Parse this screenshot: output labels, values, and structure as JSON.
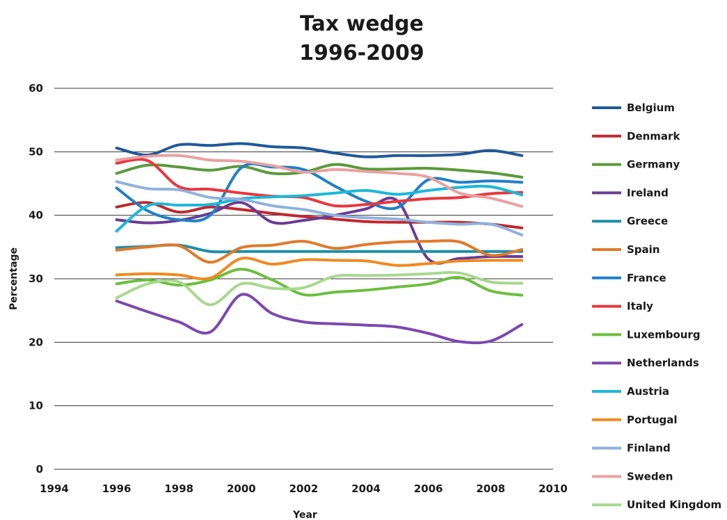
{
  "chart_data": {
    "type": "line",
    "title_lines": [
      "Tax wedge",
      "1996-2009"
    ],
    "xlabel": "Year",
    "ylabel": "Percentage",
    "xlim": [
      1994,
      2010
    ],
    "ylim": [
      0,
      60
    ],
    "x_ticks": [
      1994,
      1996,
      1998,
      2000,
      2002,
      2004,
      2006,
      2008,
      2010
    ],
    "y_ticks": [
      0,
      10,
      20,
      30,
      40,
      50,
      60
    ],
    "grid": "horizontal",
    "legend_position": "right",
    "x": [
      1996,
      1997,
      1998,
      1999,
      2000,
      2001,
      2002,
      2003,
      2004,
      2005,
      2006,
      2007,
      2008,
      2009
    ],
    "series": [
      {
        "name": "Belgium",
        "color": "#1f5a99",
        "values": [
          50.6,
          49.5,
          51.1,
          51.0,
          51.3,
          50.8,
          50.6,
          49.8,
          49.2,
          49.4,
          49.4,
          49.6,
          50.2,
          49.4
        ]
      },
      {
        "name": "Denmark",
        "color": "#c0282d",
        "values": [
          41.3,
          42.0,
          40.5,
          41.3,
          40.9,
          40.3,
          39.8,
          39.4,
          39.0,
          38.9,
          38.9,
          38.9,
          38.6,
          38.0
        ]
      },
      {
        "name": "Germany",
        "color": "#5a9a3a",
        "values": [
          46.6,
          47.9,
          47.6,
          47.1,
          47.7,
          46.6,
          46.8,
          48.0,
          47.3,
          47.3,
          47.4,
          47.1,
          46.7,
          46.0
        ]
      },
      {
        "name": "Ireland",
        "color": "#6a3c94",
        "values": [
          39.3,
          38.8,
          39.2,
          40.3,
          42.0,
          38.9,
          39.2,
          40.0,
          41.0,
          42.3,
          33.1,
          33.2,
          33.5,
          33.5
        ]
      },
      {
        "name": "Greece",
        "color": "#1c8fa8",
        "values": [
          34.9,
          35.1,
          35.3,
          34.3,
          34.3,
          34.3,
          34.3,
          34.3,
          34.3,
          34.3,
          34.3,
          34.3,
          34.3,
          34.3
        ]
      },
      {
        "name": "Spain",
        "color": "#e07a2a",
        "values": [
          34.5,
          35.0,
          35.2,
          32.6,
          34.9,
          35.3,
          35.9,
          34.8,
          35.4,
          35.8,
          35.9,
          35.8,
          33.7,
          34.6
        ]
      },
      {
        "name": "France",
        "color": "#1f80c8",
        "values": [
          44.3,
          40.7,
          39.3,
          40.0,
          47.5,
          47.6,
          47.2,
          44.6,
          42.2,
          41.2,
          45.6,
          45.2,
          45.4,
          45.2
        ]
      },
      {
        "name": "Italy",
        "color": "#e8383d",
        "values": [
          48.2,
          48.6,
          44.5,
          44.1,
          43.5,
          43.0,
          42.8,
          41.5,
          41.7,
          42.2,
          42.6,
          42.8,
          43.4,
          43.6
        ]
      },
      {
        "name": "Luxembourg",
        "color": "#6abf3c",
        "values": [
          29.2,
          29.8,
          29.0,
          29.8,
          31.5,
          29.8,
          27.5,
          27.9,
          28.2,
          28.7,
          29.2,
          30.2,
          28.1,
          27.4
        ]
      },
      {
        "name": "Netherlands",
        "color": "#7c48b0",
        "values": [
          26.5,
          24.8,
          23.2,
          21.6,
          27.5,
          24.5,
          23.2,
          22.9,
          22.7,
          22.4,
          21.4,
          20.1,
          20.2,
          22.8
        ]
      },
      {
        "name": "Austria",
        "color": "#1cb8d8",
        "values": [
          37.5,
          41.5,
          41.6,
          41.7,
          42.6,
          42.9,
          43.1,
          43.5,
          43.9,
          43.3,
          43.9,
          44.4,
          44.5,
          43.2
        ]
      },
      {
        "name": "Portugal",
        "color": "#f08a1e",
        "values": [
          30.6,
          30.8,
          30.6,
          30.1,
          33.2,
          32.3,
          33.0,
          32.9,
          32.8,
          32.1,
          32.4,
          32.8,
          32.9,
          32.9
        ]
      },
      {
        "name": "Finland",
        "color": "#8fb2dd",
        "values": [
          45.3,
          44.2,
          44.0,
          42.8,
          42.5,
          41.5,
          40.9,
          40.0,
          39.6,
          39.4,
          38.9,
          38.6,
          38.6,
          36.9
        ]
      },
      {
        "name": "Sweden",
        "color": "#eba0a0",
        "values": [
          48.7,
          49.3,
          49.4,
          48.7,
          48.5,
          47.8,
          46.8,
          47.2,
          46.9,
          46.6,
          46.0,
          43.5,
          42.7,
          41.4
        ]
      },
      {
        "name": "United Kingdom",
        "color": "#a6d98c",
        "values": [
          27.0,
          29.2,
          29.5,
          25.9,
          29.2,
          28.5,
          28.6,
          30.4,
          30.5,
          30.6,
          30.8,
          30.9,
          29.5,
          29.3
        ]
      }
    ]
  }
}
